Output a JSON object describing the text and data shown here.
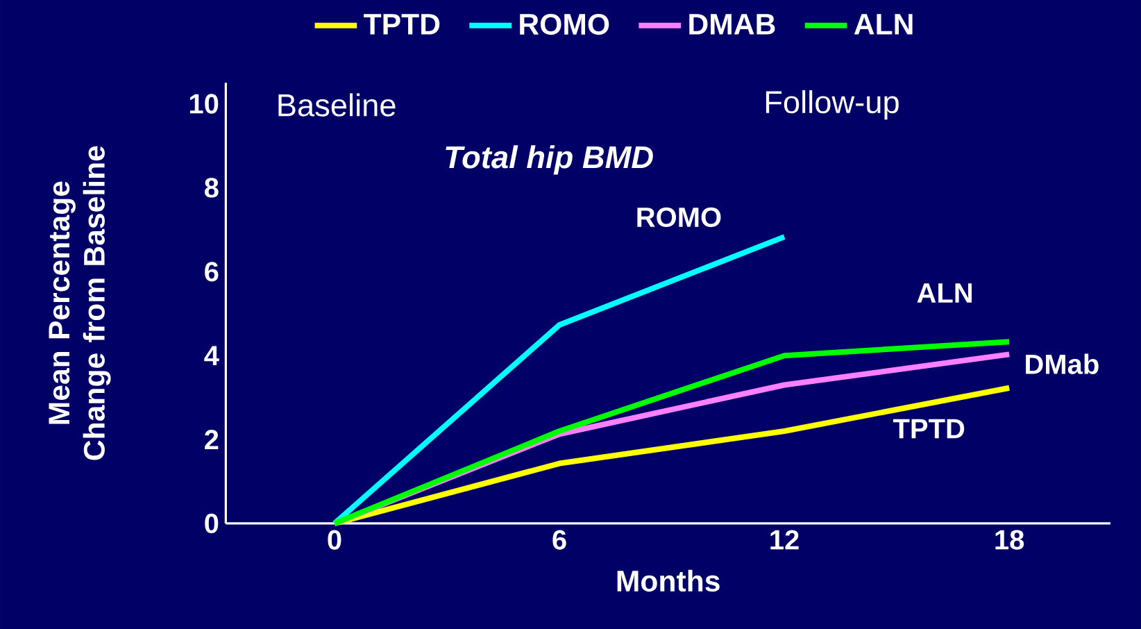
{
  "chart_data": {
    "type": "line",
    "title": "Total hip BMD",
    "xlabel": "Months",
    "ylabel": "Mean Percentage Change from Baseline",
    "x": [
      0,
      6,
      12,
      18
    ],
    "xlim": [
      -2.9,
      20.7
    ],
    "xticks": [
      0,
      6,
      12,
      18
    ],
    "ylim": [
      0,
      10.5
    ],
    "yticks": [
      0,
      2,
      4,
      6,
      8,
      10
    ],
    "legend": "top",
    "series": [
      {
        "name": "TPTD",
        "color": "#ffff00",
        "values": [
          0,
          1.43,
          2.2,
          3.23
        ]
      },
      {
        "name": "ROMO",
        "color": "#00ffff",
        "values": [
          0,
          4.73,
          6.83,
          null
        ]
      },
      {
        "name": "DMAB",
        "color": "#ff80ff",
        "values": [
          0,
          2.13,
          3.3,
          4.03
        ]
      },
      {
        "name": "ALN",
        "color": "#00ff00",
        "values": [
          0,
          2.2,
          4.0,
          4.33
        ]
      }
    ],
    "annotations": [
      "Baseline",
      "Follow-up",
      "ROMO",
      "ALN",
      "DMab",
      "TPTD"
    ]
  }
}
